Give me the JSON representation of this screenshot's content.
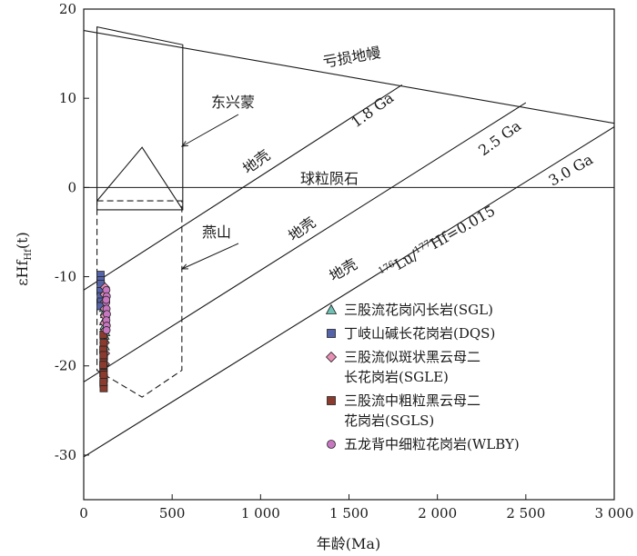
{
  "chart_data": {
    "type": "scatter",
    "title": "",
    "xlabel": "年龄(Ma)",
    "ylabel": "εHf(t)",
    "ylabel_main": "εHf",
    "ylabel_sub": "Hf",
    "ylabel_suffix": "(t)",
    "xlim": [
      0,
      3000
    ],
    "ylim": [
      -35,
      20
    ],
    "xticks": [
      0,
      500,
      1000,
      1500,
      2000,
      2500,
      3000
    ],
    "xtick_labels": [
      "0",
      "500",
      "1 000",
      "1 500",
      "2 000",
      "2 500",
      "3 000"
    ],
    "yticks": [
      -30,
      -20,
      -10,
      0,
      10,
      20
    ],
    "ytick_labels": [
      "-30",
      "-20",
      "-10",
      "0",
      "10",
      "20"
    ],
    "grid": false,
    "legend_position": "right",
    "reference_lines": [
      {
        "label": "亏损地幔",
        "points": [
          [
            0,
            17.6
          ],
          [
            3000,
            7.2
          ]
        ]
      },
      {
        "label": "球粒陨石",
        "points": [
          [
            0,
            0
          ],
          [
            3000,
            0
          ]
        ]
      },
      {
        "label": "1.8 Ga",
        "points": [
          [
            0,
            -11.5
          ],
          [
            1800,
            11.5
          ]
        ]
      },
      {
        "label": "2.5 Ga",
        "points": [
          [
            0,
            -21.8
          ],
          [
            2500,
            9.5
          ]
        ]
      },
      {
        "label": "3.0 Ga",
        "points": [
          [
            0,
            -30.2
          ],
          [
            3000,
            6.8
          ]
        ]
      }
    ],
    "annotations": {
      "depleted_mantle": "亏损地幔",
      "chondrite": "球粒陨石",
      "ga18": "1.8 Ga",
      "ga25": "2.5 Ga",
      "ga30": "3.0 Ga",
      "crust1": "地壳",
      "crust2": "地壳",
      "crust3": "地壳",
      "dongxingmeng": "东兴蒙",
      "yanshan": "燕山",
      "lu_hf": "176Lu/177Hf=0.015",
      "lu_hf_sup1": "176",
      "lu_hf_main1": "Lu/",
      "lu_hf_sup2": "177",
      "lu_hf_main2": "Hf=0.015"
    },
    "fields": [
      {
        "name": "东兴蒙",
        "style": "solid",
        "polygon": [
          [
            75,
            18
          ],
          [
            560,
            16
          ],
          [
            560,
            -2.5
          ],
          [
            75,
            -2.5
          ]
        ],
        "inner_polyline": [
          [
            75,
            -1.5
          ],
          [
            330,
            4.5
          ],
          [
            560,
            -2.5
          ]
        ]
      },
      {
        "name": "燕山",
        "style": "dashed",
        "polygon": [
          [
            75,
            -1.5
          ],
          [
            555,
            -1.5
          ],
          [
            555,
            -20.5
          ],
          [
            330,
            -23.5
          ],
          [
            75,
            -20.5
          ]
        ]
      }
    ],
    "series": [
      {
        "name": "三股流花岗闪长岩(SGL)",
        "marker": "triangle",
        "color": "#6fc2b4",
        "x": [
          115,
          120,
          118,
          122,
          117,
          119,
          121,
          116,
          118,
          120
        ],
        "y": [
          -13.5,
          -14.8,
          -15.5,
          -16.2,
          -17.0,
          -17.8,
          -14.2,
          -15.0,
          -16.6,
          -13.9
        ]
      },
      {
        "name": "丁岐山碱长花岗岩(DQS)",
        "marker": "square",
        "color": "#5563a8",
        "x": [
          95,
          96,
          97,
          95,
          96,
          97,
          95,
          96
        ],
        "y": [
          -9.8,
          -10.4,
          -11.0,
          -11.6,
          -12.2,
          -12.8,
          -13.3,
          -10.8
        ]
      },
      {
        "name": "三股流似斑状黑云母二长花岗岩(SGLE)",
        "marker": "diamond",
        "color": "#e88fb6",
        "x": [
          120,
          118,
          121,
          119,
          120,
          118,
          122,
          119,
          121,
          120
        ],
        "y": [
          -11.2,
          -12.0,
          -12.8,
          -13.6,
          -14.4,
          -15.2,
          -16.0,
          -17.4,
          -18.6,
          -19.8
        ]
      },
      {
        "name": "三股流中粗粒黑云母二长花岗岩(SGLS)",
        "marker": "square",
        "color": "#8b3a2e",
        "x": [
          112,
          113,
          111,
          114,
          112,
          113,
          111,
          114,
          112,
          113,
          112,
          113,
          111,
          112
        ],
        "y": [
          -16.5,
          -17.4,
          -18.2,
          -19.0,
          -19.6,
          -20.2,
          -20.8,
          -21.4,
          -22.0,
          -22.5,
          -18.8,
          -21.0,
          -19.9,
          -21.8
        ]
      },
      {
        "name": "五龙背中细粒花岗岩(WLBY)",
        "marker": "circle",
        "color": "#c777c0",
        "x": [
          128,
          130,
          127,
          129,
          131,
          128,
          130,
          129,
          127
        ],
        "y": [
          -11.5,
          -12.2,
          -12.9,
          -13.6,
          -14.2,
          -14.9,
          -15.5,
          -16.0,
          -12.6
        ]
      }
    ]
  },
  "legend": {
    "items": [
      {
        "lines": [
          "三股流花岗闪长岩(SGL)"
        ],
        "marker": "triangle",
        "color": "#6fc2b4"
      },
      {
        "lines": [
          "丁岐山碱长花岗岩(DQS)"
        ],
        "marker": "square",
        "color": "#5563a8"
      },
      {
        "lines": [
          "三股流似斑状黑云母二",
          "长花岗岩(SGLE)"
        ],
        "marker": "diamond",
        "color": "#e88fb6"
      },
      {
        "lines": [
          "三股流中粗粒黑云母二",
          "花岗岩(SGLS)"
        ],
        "marker": "square",
        "color": "#8b3a2e"
      },
      {
        "lines": [
          "五龙背中细粒花岗岩(WLBY)"
        ],
        "marker": "circle",
        "color": "#c777c0"
      }
    ]
  }
}
